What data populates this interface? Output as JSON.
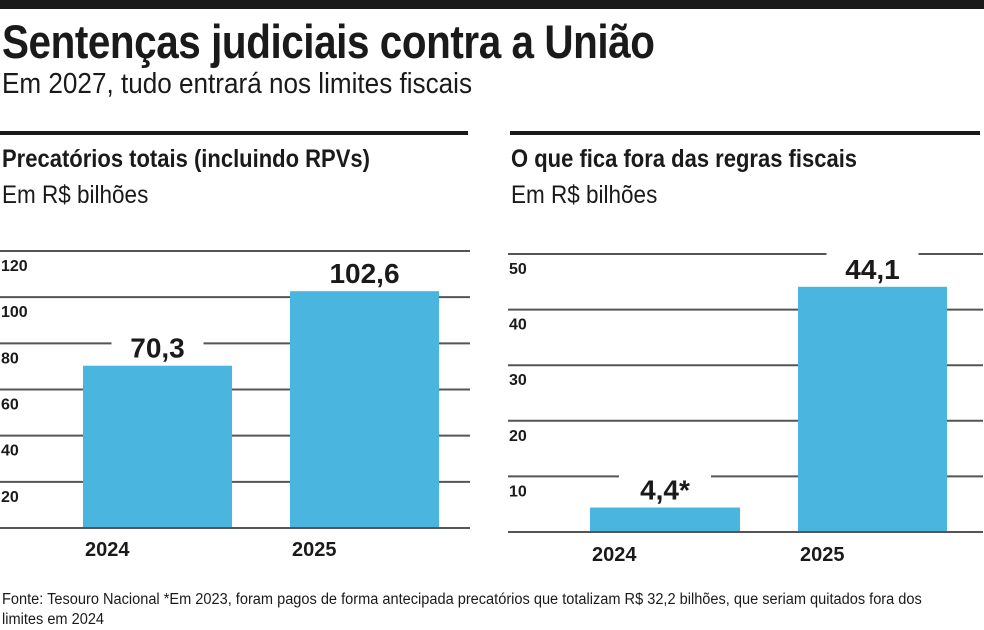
{
  "title": "Sentenças judiciais contra a União",
  "subtitle": "Em 2027, tudo entrará nos limites fiscais",
  "footer": "Fonte: Tesouro Nacional *Em 2023, foram pagos de forma antecipada precatórios que totalizam R$ 32,2 bilhões, que seriam quitados fora dos limites em 2024",
  "colors": {
    "bar": "#4ab6df",
    "grid": "#555555",
    "text": "#1a1a1a"
  },
  "chart_data": [
    {
      "type": "bar",
      "title": "Precatórios totais (incluindo RPVs)",
      "subtitle": "Em R$ bilhões",
      "categories": [
        "2024",
        "2025"
      ],
      "values": [
        70.3,
        102.6
      ],
      "labels": [
        "70,3",
        "102,6"
      ],
      "yticks": [
        20,
        40,
        60,
        80,
        100,
        120
      ],
      "ylim": [
        0,
        120
      ],
      "grid": true
    },
    {
      "type": "bar",
      "title": "O que fica fora das regras fiscais",
      "subtitle": "Em R$ bilhões",
      "categories": [
        "2024",
        "2025"
      ],
      "values": [
        4.4,
        44.1
      ],
      "labels": [
        "4,4*",
        "44,1"
      ],
      "yticks": [
        10,
        20,
        30,
        40,
        50
      ],
      "ylim": [
        0,
        50
      ],
      "grid": true
    }
  ]
}
